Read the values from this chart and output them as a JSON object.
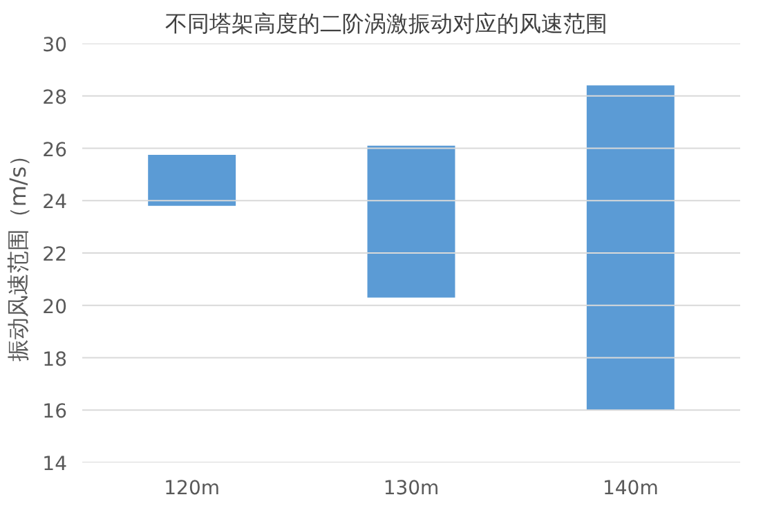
{
  "chart_data": {
    "type": "bar",
    "title": "不同塔架高度的二阶涡激振动对应的风速范围",
    "ylabel": "振动风速范围（m/s）",
    "categories": [
      "120m",
      "130m",
      "140m"
    ],
    "base": [
      23.8,
      20.3,
      16.0
    ],
    "values": [
      1.95,
      5.8,
      12.4
    ],
    "color": "#5b9bd5",
    "ylim": [
      14,
      30
    ],
    "yticks": [
      14,
      16,
      18,
      20,
      22,
      24,
      26,
      28,
      30
    ],
    "grid": "y"
  }
}
